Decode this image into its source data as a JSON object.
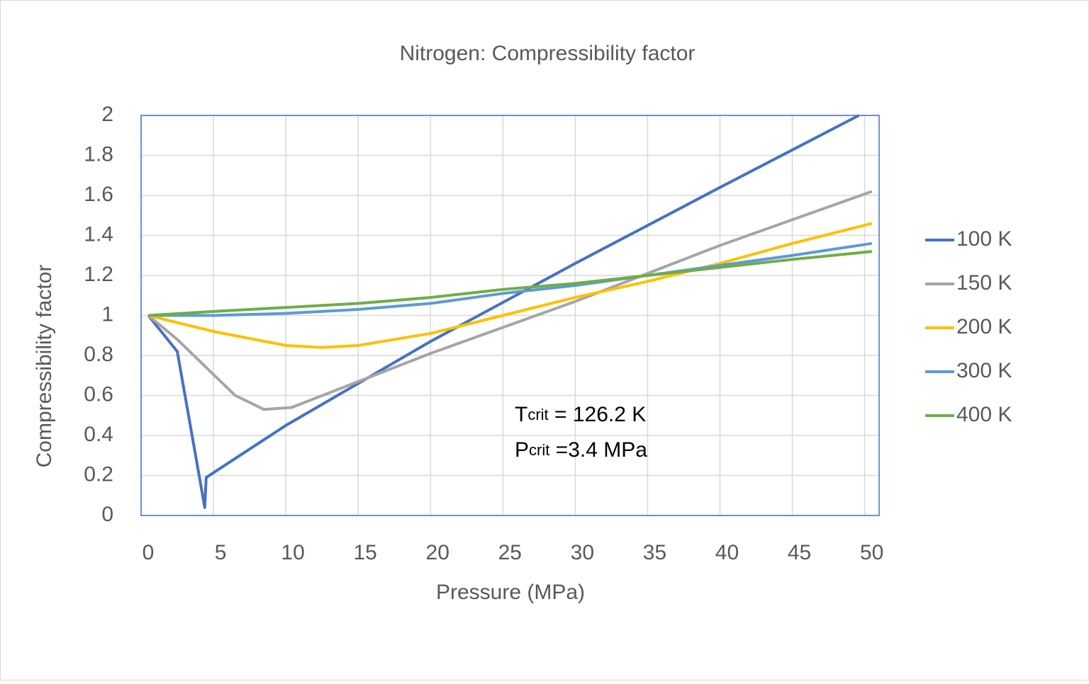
{
  "chart_data": {
    "type": "line",
    "title": "Nitrogen: Compressibility factor",
    "x_label": "Pressure (MPa)",
    "y_label": "Compressibility factor",
    "xlim": [
      0,
      51
    ],
    "xticks": [
      0,
      5,
      10,
      15,
      20,
      25,
      30,
      35,
      40,
      45,
      50
    ],
    "ylim": [
      0,
      2
    ],
    "yticks": [
      0,
      0.2,
      0.4,
      0.6,
      0.8,
      1,
      1.2,
      1.4,
      1.6,
      1.8,
      2
    ],
    "grid": true,
    "legend": "right",
    "series": [
      {
        "name": "100 K",
        "color": "#4472c4",
        "x": [
          0.5,
          2.5,
          4.4,
          4.5,
          10,
          20,
          30,
          40,
          49.6
        ],
        "values": [
          1.0,
          0.82,
          0.04,
          0.19,
          0.45,
          0.87,
          1.26,
          1.64,
          2.0
        ]
      },
      {
        "name": "150 K",
        "color": "#a5a5a5",
        "x": [
          0.5,
          2.5,
          6.5,
          8.5,
          10.4,
          20,
          30,
          40,
          50.5
        ],
        "values": [
          1.0,
          0.88,
          0.6,
          0.53,
          0.54,
          0.81,
          1.07,
          1.35,
          1.62
        ]
      },
      {
        "name": "200 K",
        "color": "#ffc000",
        "x": [
          0.5,
          5,
          10,
          12.5,
          15,
          20,
          25,
          30,
          35,
          40,
          45,
          50.5
        ],
        "values": [
          1.0,
          0.92,
          0.85,
          0.84,
          0.85,
          0.91,
          1.0,
          1.09,
          1.17,
          1.26,
          1.36,
          1.46
        ]
      },
      {
        "name": "300 K",
        "color": "#5b9bd5",
        "x": [
          0.5,
          5,
          10,
          15,
          20,
          25,
          30,
          35,
          40,
          45,
          50.5
        ],
        "values": [
          1.0,
          1.0,
          1.01,
          1.03,
          1.06,
          1.11,
          1.15,
          1.2,
          1.25,
          1.3,
          1.36
        ]
      },
      {
        "name": "400 K",
        "color": "#70ad47",
        "x": [
          0.5,
          5,
          10,
          15,
          20,
          25,
          30,
          35,
          40,
          45,
          50.5
        ],
        "values": [
          1.0,
          1.02,
          1.04,
          1.06,
          1.09,
          1.13,
          1.16,
          1.2,
          1.24,
          1.28,
          1.32
        ]
      }
    ],
    "annotations": [
      {
        "main": "T",
        "sub": "crit",
        "rest": " = 126.2 K"
      },
      {
        "main": "P",
        "sub": "crit",
        "rest": " =3.4 MPa"
      }
    ]
  }
}
